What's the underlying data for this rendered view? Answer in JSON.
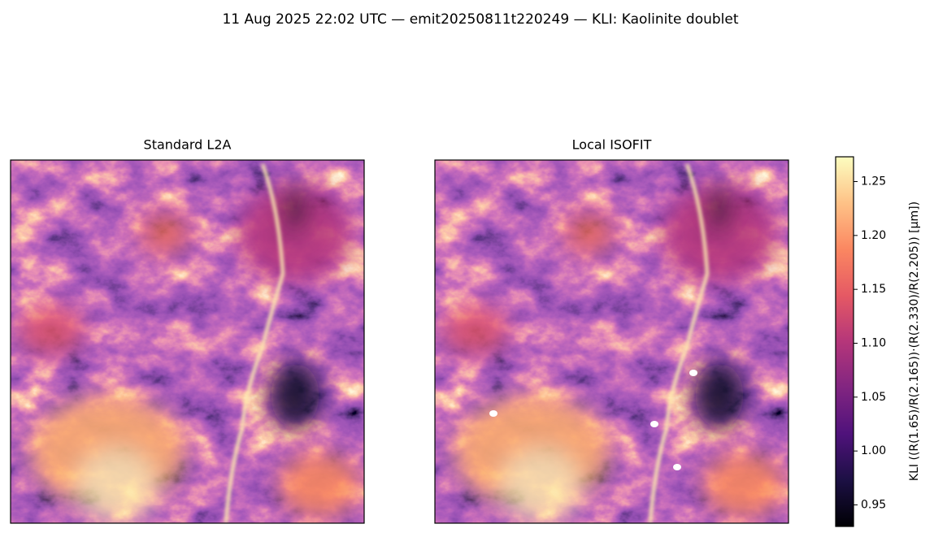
{
  "chart_data": {
    "type": "heatmap-pair",
    "title": "11 Aug 2025 22:02 UTC — emit20250811t220249 — KLI: Kaolinite doublet",
    "panels": [
      {
        "title": "Standard L2A"
      },
      {
        "title": "Local ISOFIT"
      }
    ],
    "colorbar": {
      "label": "KLI  ((R(1.65)/R(2.165))·(R(2.330)/R(2.205))  [µm])",
      "colormap": "magma",
      "lim": [
        0.93,
        1.273
      ],
      "ticks": [
        0.95,
        {
          "value": 1.0,
          "label": "1.00"
        },
        1.05,
        {
          "value": 1.1,
          "label": "1.10"
        },
        1.15,
        {
          "value": 1.2,
          "label": "1.20"
        },
        1.25
      ]
    }
  }
}
